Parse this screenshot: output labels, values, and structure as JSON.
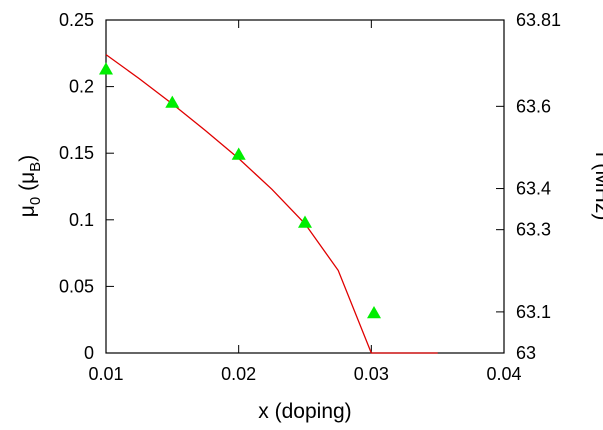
{
  "chart_data": {
    "type": "scatter",
    "xlabel": "x (doping)",
    "ylabel": {
      "base": "μ",
      "sub": "0",
      "mid": " (μ",
      "sub2": "B",
      "end": ")"
    },
    "y2label": "f (MHz)",
    "xlim": [
      0.01,
      0.04
    ],
    "ylim": [
      0,
      0.25
    ],
    "y2lim": [
      63.0,
      63.81
    ],
    "xticks": [
      "0.01",
      "0.02",
      "0.03",
      "0.04"
    ],
    "yticks": [
      "0",
      "0.05",
      "0.1",
      "0.15",
      "0.2",
      "0.25"
    ],
    "y2ticks": [
      {
        "label": "63",
        "value": 63.0
      },
      {
        "label": "63.1",
        "value": 63.1
      },
      {
        "label": "63.3",
        "value": 63.3
      },
      {
        "label": "63.4",
        "value": 63.4
      },
      {
        "label": "63.6",
        "value": 63.6
      },
      {
        "label": "63.81",
        "value": 63.81
      }
    ],
    "grid": false,
    "series": [
      {
        "kind": "line",
        "color": "#e00000",
        "x": [
          0.01,
          0.0125,
          0.015,
          0.0175,
          0.02,
          0.0225,
          0.025,
          0.0275,
          0.03,
          0.035
        ],
        "y": [
          0.224,
          0.206,
          0.187,
          0.167,
          0.146,
          0.123,
          0.097,
          0.062,
          0.0,
          0.0
        ]
      },
      {
        "kind": "marker",
        "marker": "triangle",
        "color": "#00ee00",
        "x": [
          0.01,
          0.015,
          0.02,
          0.025,
          0.0302
        ],
        "y": [
          0.213,
          0.188,
          0.149,
          0.098,
          0.03
        ]
      }
    ]
  }
}
